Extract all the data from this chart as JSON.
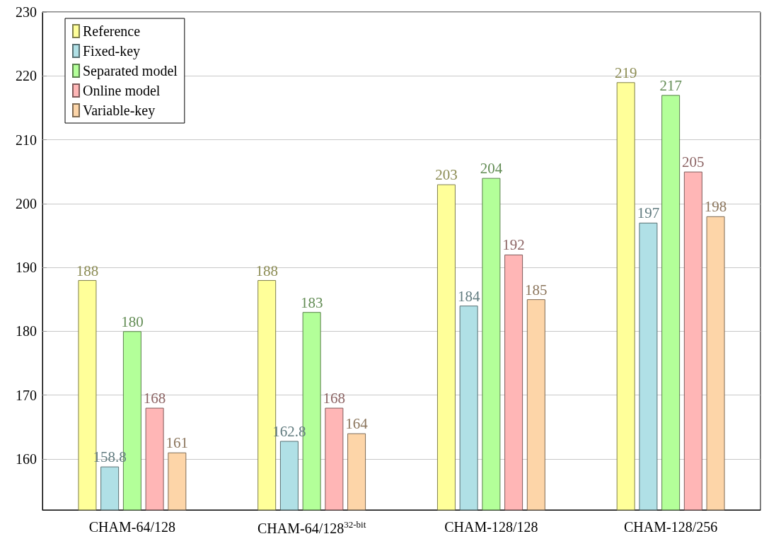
{
  "chart_data": {
    "type": "bar",
    "categories": [
      "CHAM-64/128",
      "CHAM-64/128$^{32-bit}$",
      "CHAM-128/128",
      "CHAM-128/256"
    ],
    "series": [
      {
        "name": "Reference",
        "color": "#ffff99",
        "values": [
          188,
          188,
          203,
          219
        ]
      },
      {
        "name": "Fixed-key",
        "color": "#b0e0e6",
        "values": [
          158.8,
          162.8,
          184,
          197
        ]
      },
      {
        "name": "Separated model",
        "color": "#b3ff99",
        "values": [
          180,
          183,
          204,
          217
        ]
      },
      {
        "name": "Online model",
        "color": "#ffb6b6",
        "values": [
          168,
          168,
          192,
          205
        ]
      },
      {
        "name": "Variable-key",
        "color": "#fdd5a8",
        "values": [
          161,
          164,
          185,
          198
        ]
      }
    ],
    "ylim": [
      152,
      230
    ],
    "yticks": [
      160,
      170,
      180,
      190,
      200,
      210,
      220,
      230
    ],
    "grid": "y",
    "legend": "top left",
    "data_labels": true
  }
}
